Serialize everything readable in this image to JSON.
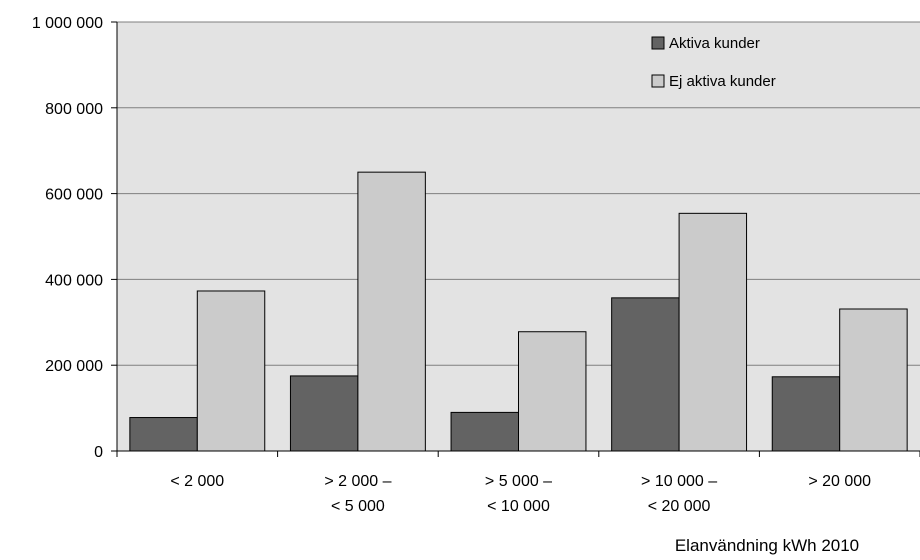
{
  "chart_data": {
    "type": "bar",
    "categories": [
      [
        "< 2 000"
      ],
      [
        "> 2 000 –",
        "< 5 000"
      ],
      [
        "> 5 000 –",
        "< 10 000"
      ],
      [
        "> 10 000 –",
        "< 20 000"
      ],
      [
        "> 20 000"
      ]
    ],
    "series": [
      {
        "name": "Aktiva kunder",
        "values": [
          78000,
          175000,
          90000,
          357000,
          173000
        ],
        "color": "#636363"
      },
      {
        "name": "Ej aktiva kunder",
        "values": [
          373000,
          650000,
          278000,
          554000,
          331000
        ],
        "color": "#cbcbcb"
      }
    ],
    "ylim": [
      0,
      1000000
    ],
    "yticks": [
      0,
      200000,
      400000,
      600000,
      800000,
      1000000
    ],
    "ytick_labels": [
      "0",
      "200 000",
      "400 000",
      "600 000",
      "800 000",
      "1 000 000"
    ],
    "xlabel": "Elanvändning kWh 2010",
    "ylabel": "",
    "grid": true,
    "legend_position": "top-right",
    "plot_background": "#e3e3e3"
  }
}
